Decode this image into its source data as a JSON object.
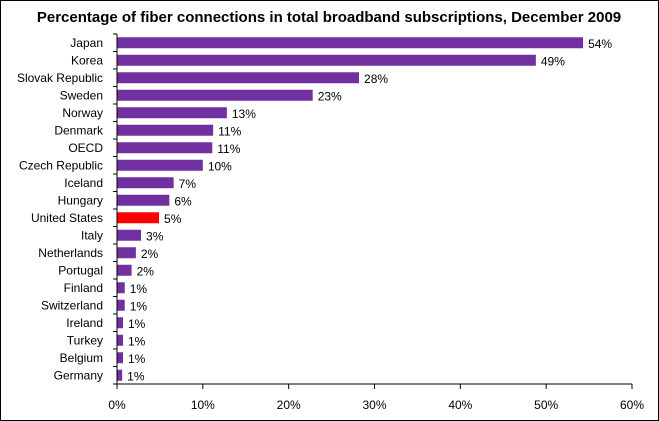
{
  "chart_data": {
    "type": "bar",
    "orientation": "horizontal",
    "title": "Percentage of fiber connections in total broadband subscriptions, December 2009",
    "xlabel": "",
    "ylabel": "",
    "xlim": [
      0,
      60
    ],
    "x_ticks": [
      "0%",
      "10%",
      "20%",
      "30%",
      "40%",
      "50%",
      "60%"
    ],
    "grid": false,
    "legend": "none",
    "bar_color": "#7030A0",
    "highlight_color": "#FF0000",
    "highlight_category": "United States",
    "categories": [
      "Japan",
      "Korea",
      "Slovak Republic",
      "Sweden",
      "Norway",
      "Denmark",
      "OECD",
      "Czech Republic",
      "Iceland",
      "Hungary",
      "United States",
      "Italy",
      "Netherlands",
      "Portugal",
      "Finland",
      "Switzerland",
      "Ireland",
      "Turkey",
      "Belgium",
      "Germany"
    ],
    "values": [
      54.3,
      48.8,
      28.2,
      22.8,
      12.8,
      11.2,
      11.1,
      10.0,
      6.6,
      6.1,
      4.9,
      2.8,
      2.2,
      1.7,
      0.9,
      0.9,
      0.7,
      0.7,
      0.7,
      0.6
    ],
    "value_labels": [
      "54%",
      "49%",
      "28%",
      "23%",
      "13%",
      "11%",
      "11%",
      "10%",
      "7%",
      "6%",
      "5%",
      "3%",
      "2%",
      "2%",
      "1%",
      "1%",
      "1%",
      "1%",
      "1%",
      "1%"
    ]
  }
}
